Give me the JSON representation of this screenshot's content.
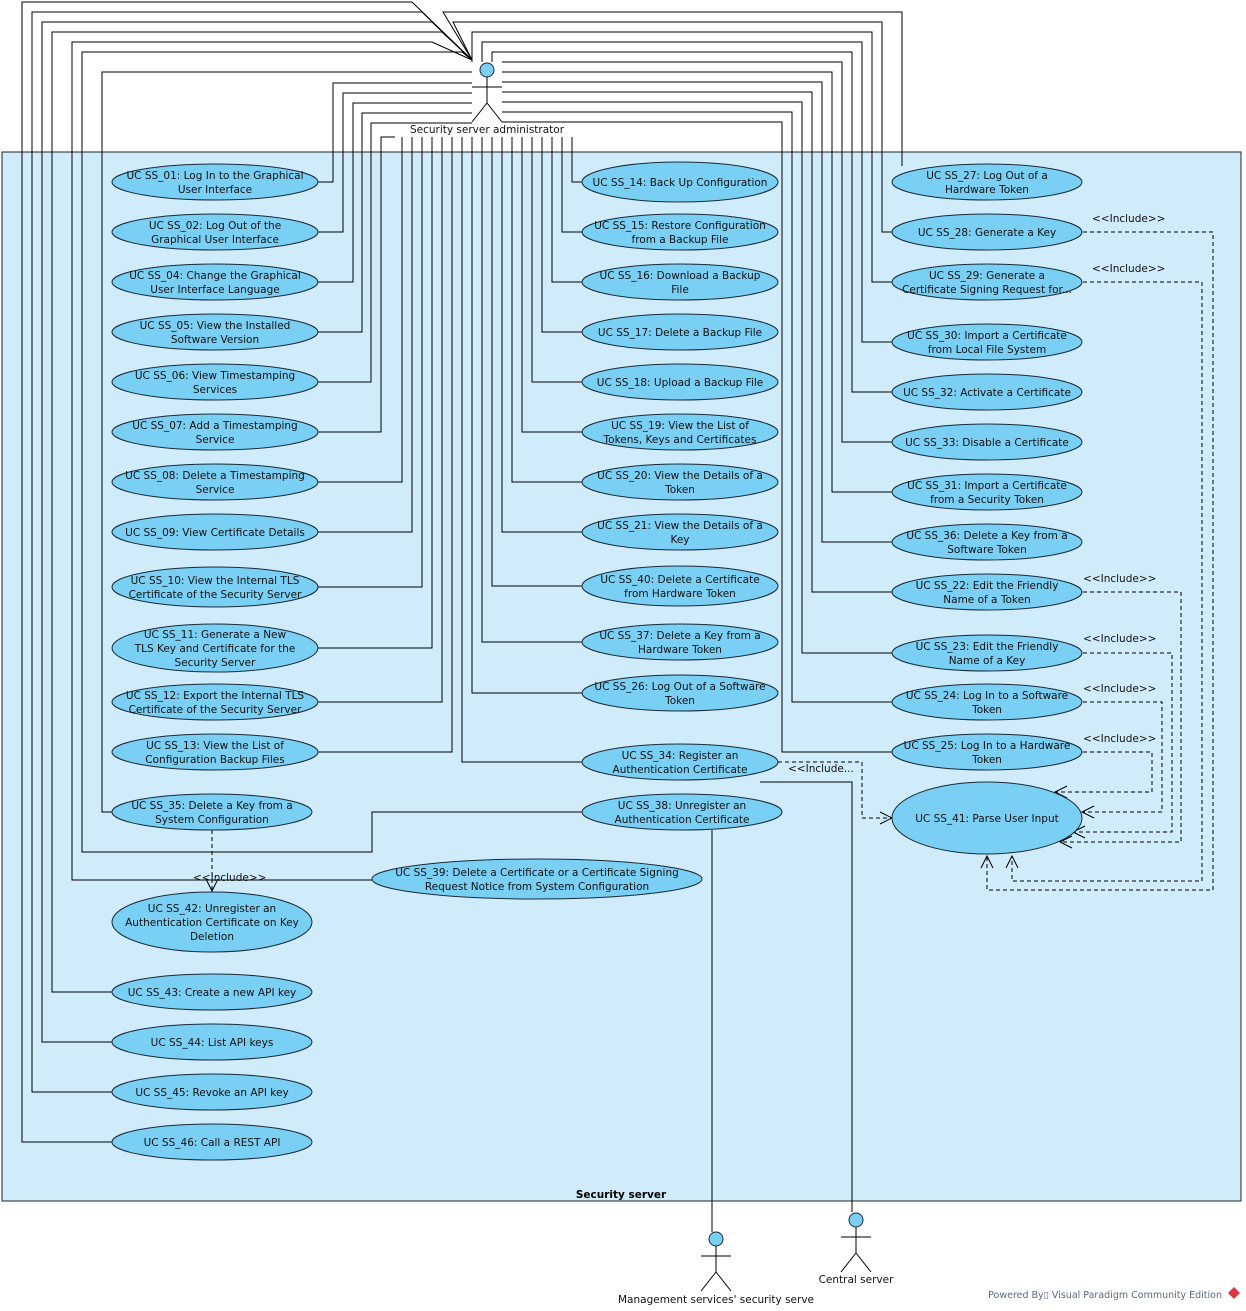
{
  "system": {
    "name": "Security server"
  },
  "actors": {
    "admin": "Security server administrator",
    "management": "Management services' security serve",
    "central": "Central server"
  },
  "include_label": "<<Include>>",
  "include_label_truncated": "<<Include...",
  "footer": "Powered By▯ Visual Paradigm Community Edition",
  "colors": {
    "use_case_fill": "#7acff5",
    "system_fill": "#d0ecfa",
    "text": "#111111"
  },
  "use_cases": {
    "ss01": [
      "UC SS_01: Log In to the Graphical",
      "User Interface"
    ],
    "ss02": [
      "UC SS_02: Log Out of the",
      "Graphical User Interface"
    ],
    "ss04": [
      "UC SS_04: Change the Graphical",
      "User Interface Language"
    ],
    "ss05": [
      "UC SS_05: View the Installed",
      "Software Version"
    ],
    "ss06": [
      "UC SS_06: View Timestamping",
      "Services"
    ],
    "ss07": [
      "UC SS_07: Add a Timestamping",
      "Service"
    ],
    "ss08": [
      "UC SS_08: Delete a Timestamping",
      "Service"
    ],
    "ss09": [
      "UC SS_09: View Certificate Details"
    ],
    "ss10": [
      "UC SS_10: View the Internal TLS",
      "Certificate of the Security Server"
    ],
    "ss11": [
      "UC SS_11: Generate a New",
      "TLS Key and Certificate for the",
      "Security Server"
    ],
    "ss12": [
      "UC SS_12: Export the Internal TLS",
      "Certificate of the Security Server"
    ],
    "ss13": [
      "UC SS_13: View the List of",
      "Configuration Backup Files"
    ],
    "ss35": [
      "UC SS_35: Delete a Key from a",
      "System Configuration"
    ],
    "ss42": [
      "UC SS_42: Unregister an",
      "Authentication Certificate on Key",
      "Deletion"
    ],
    "ss43": [
      "UC SS_43: Create a new API key"
    ],
    "ss44": [
      "UC SS_44: List API keys"
    ],
    "ss45": [
      "UC SS_45: Revoke an API key"
    ],
    "ss46": [
      "UC SS_46: Call a REST API"
    ],
    "ss14": [
      "UC SS_14: Back Up Configuration"
    ],
    "ss15": [
      "UC SS_15: Restore Configuration",
      "from a Backup File"
    ],
    "ss16": [
      "UC SS_16: Download a Backup",
      "File"
    ],
    "ss17": [
      "UC SS_17: Delete a Backup File"
    ],
    "ss18": [
      "UC SS_18: Upload a Backup File"
    ],
    "ss19": [
      "UC SS_19: View the List of",
      "Tokens, Keys and Certificates"
    ],
    "ss20": [
      "UC SS_20: View the Details of a",
      "Token"
    ],
    "ss21": [
      "UC SS_21: View the Details of a",
      "Key"
    ],
    "ss40": [
      "UC SS_40: Delete a Certificate",
      "from Hardware Token"
    ],
    "ss37": [
      "UC SS_37: Delete a Key from a",
      "Hardware Token"
    ],
    "ss26": [
      "UC SS_26: Log Out of a Software",
      "Token"
    ],
    "ss34": [
      "UC SS_34: Register an",
      "Authentication Certificate"
    ],
    "ss38": [
      "UC SS_38: Unregister an",
      "Authentication Certificate"
    ],
    "ss39": [
      "UC SS_39: Delete a Certificate or a Certificate Signing",
      "Request Notice from System Configuration"
    ],
    "ss27": [
      "UC SS_27: Log Out of a",
      "Hardware Token"
    ],
    "ss28": [
      "UC SS_28: Generate a Key"
    ],
    "ss29": [
      "UC SS_29: Generate a",
      "Certificate Signing Request for..."
    ],
    "ss30": [
      "UC SS_30: Import a Certificate",
      "from Local File System"
    ],
    "ss32": [
      "UC SS_32: Activate a Certificate"
    ],
    "ss33": [
      "UC SS_33: Disable a Certificate"
    ],
    "ss31": [
      "UC SS_31: Import a Certificate",
      "from a Security Token"
    ],
    "ss36": [
      "UC SS_36: Delete a Key from a",
      "Software Token"
    ],
    "ss22": [
      "UC SS_22: Edit the Friendly",
      "Name of a Token"
    ],
    "ss23": [
      "UC SS_23: Edit the Friendly",
      "Name of a Key"
    ],
    "ss24": [
      "UC SS_24: Log In to a Software",
      "Token"
    ],
    "ss25": [
      "UC SS_25: Log In to a Hardware",
      "Token"
    ],
    "ss41": [
      "UC SS_41: Parse User Input"
    ]
  }
}
